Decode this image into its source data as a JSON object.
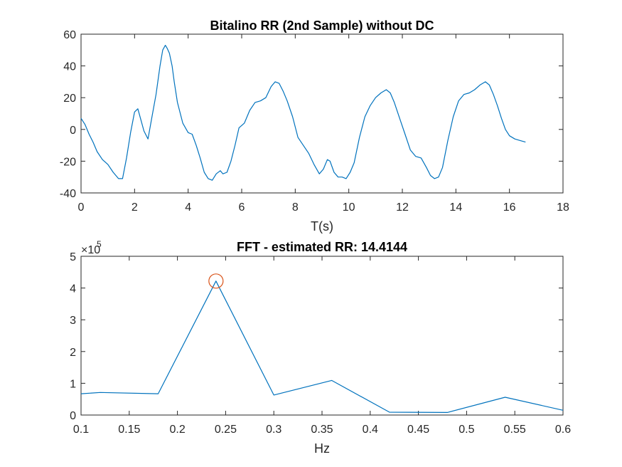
{
  "chart_data": [
    {
      "type": "line",
      "title": "Bitalino RR (2nd Sample) without DC",
      "xlabel": "T(s)",
      "ylabel": "",
      "xlim": [
        0,
        18
      ],
      "ylim": [
        -40,
        60
      ],
      "xticks": [
        "0",
        "2",
        "4",
        "6",
        "8",
        "10",
        "12",
        "14",
        "16",
        "18"
      ],
      "yticks": [
        "-40",
        "-20",
        "0",
        "20",
        "40",
        "60"
      ],
      "line_color": "#0072BD",
      "series": [
        {
          "x": [
            0.0,
            0.15,
            0.3,
            0.45,
            0.6,
            0.8,
            1.0,
            1.2,
            1.4,
            1.55,
            1.7,
            1.85,
            2.0,
            2.12,
            2.22,
            2.35,
            2.5,
            2.65,
            2.8,
            2.95,
            3.05,
            3.15,
            3.22,
            3.3,
            3.4,
            3.48,
            3.6,
            3.8,
            4.0,
            4.15,
            4.3,
            4.45,
            4.6,
            4.75,
            4.9,
            5.05,
            5.2,
            5.3,
            5.45,
            5.6,
            5.75,
            5.9,
            6.1,
            6.3,
            6.5,
            6.7,
            6.9,
            7.1,
            7.25,
            7.4,
            7.55,
            7.7,
            7.9,
            8.1,
            8.3,
            8.5,
            8.7,
            8.9,
            9.05,
            9.2,
            9.3,
            9.45,
            9.6,
            9.75,
            9.9,
            10.05,
            10.2,
            10.4,
            10.6,
            10.8,
            11.0,
            11.2,
            11.4,
            11.55,
            11.7,
            11.9,
            12.1,
            12.3,
            12.5,
            12.7,
            12.9,
            13.05,
            13.2,
            13.35,
            13.5,
            13.7,
            13.9,
            14.1,
            14.3,
            14.5,
            14.7,
            14.9,
            15.1,
            15.25,
            15.4,
            15.55,
            15.7,
            15.85,
            16.0,
            16.2,
            16.4,
            16.6
          ],
          "y": [
            7,
            3,
            -3,
            -8,
            -14,
            -19,
            -22,
            -27,
            -31,
            -31,
            -18,
            -2,
            11,
            13,
            7,
            -1,
            -6,
            8,
            22,
            40,
            50,
            53,
            51,
            48,
            40,
            30,
            17,
            4,
            -2,
            -3,
            -10,
            -18,
            -27,
            -31,
            -32,
            -28,
            -26,
            -28,
            -27,
            -20,
            -10,
            1,
            4,
            12,
            17,
            18,
            20,
            27,
            30,
            29,
            24,
            18,
            8,
            -5,
            -10,
            -15,
            -22,
            -28,
            -25,
            -19,
            -20,
            -27,
            -30,
            -30,
            -31,
            -27,
            -21,
            -5,
            8,
            15,
            20,
            23,
            25,
            23,
            17,
            7,
            -3,
            -13,
            -17,
            -18,
            -24,
            -29,
            -31,
            -30,
            -24,
            -7,
            8,
            18,
            22,
            23,
            25,
            28,
            30,
            28,
            22,
            15,
            7,
            0,
            -4,
            -6,
            -7,
            -8
          ]
        }
      ]
    },
    {
      "type": "line",
      "title": "FFT - estimated RR: 14.4144",
      "xlabel": "Hz",
      "ylabel": "",
      "xlim": [
        0.1,
        0.6
      ],
      "ylim": [
        0,
        5
      ],
      "y_multiplier": "×10",
      "y_multiplier_exp": "5",
      "xticks": [
        "0.1",
        "0.15",
        "0.2",
        "0.25",
        "0.3",
        "0.35",
        "0.4",
        "0.45",
        "0.5",
        "0.55",
        "0.6"
      ],
      "yticks": [
        "0",
        "1",
        "2",
        "3",
        "4",
        "5"
      ],
      "line_color": "#0072BD",
      "marker_color": "#D95319",
      "series": [
        {
          "x": [
            0.1,
            0.12,
            0.18,
            0.24,
            0.3,
            0.36,
            0.42,
            0.48,
            0.54,
            0.6
          ],
          "y": [
            0.67,
            0.71,
            0.67,
            4.22,
            0.63,
            1.09,
            0.09,
            0.08,
            0.56,
            0.15
          ]
        }
      ],
      "peak": {
        "x": 0.24,
        "y": 4.22
      }
    }
  ]
}
